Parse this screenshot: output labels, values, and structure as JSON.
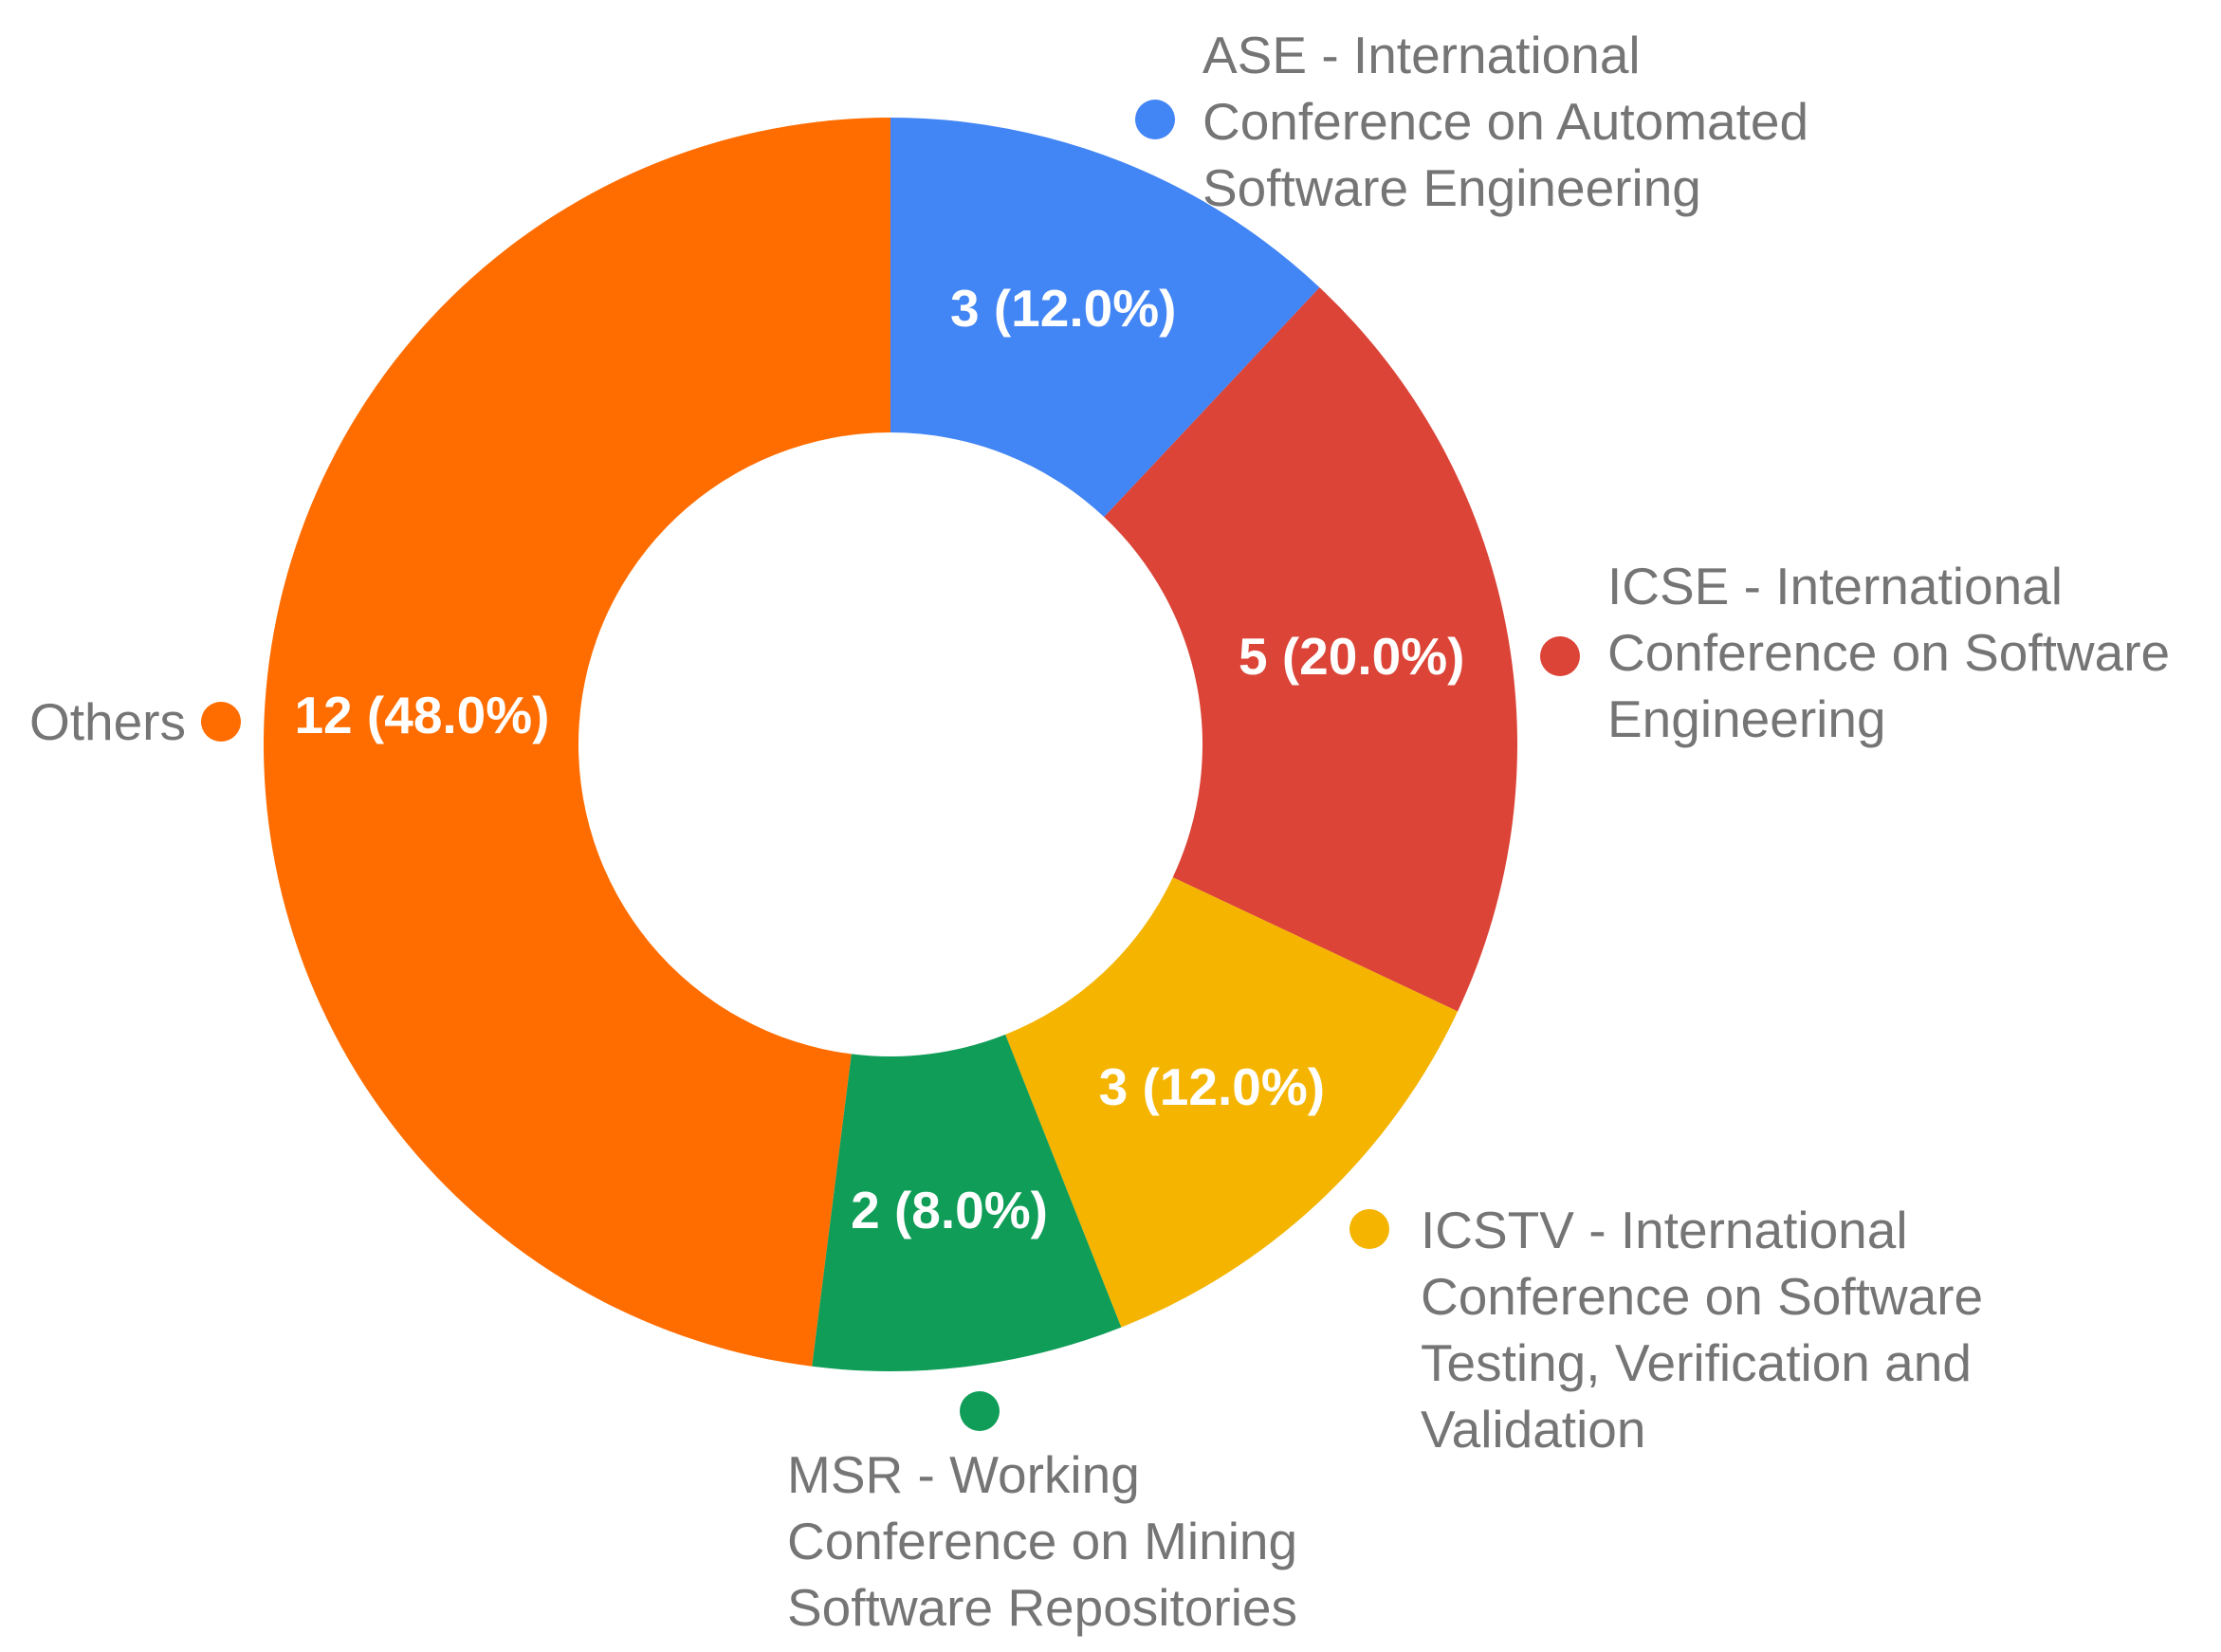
{
  "chart_data": {
    "type": "pie",
    "variant": "donut",
    "title": "",
    "series": [
      {
        "name": "ASE - International Conference on Automated Software Engineering",
        "label_lines": [
          "ASE - International",
          "Conference on Automated",
          "Software Engineering"
        ],
        "value": 3,
        "percent": 12.0,
        "data_label": "3 (12.0%)",
        "color": "#4285F4"
      },
      {
        "name": "ICSE - International Conference on Software Engineering",
        "label_lines": [
          "ICSE - International",
          "Conference on Software",
          "Engineering"
        ],
        "value": 5,
        "percent": 20.0,
        "data_label": "5 (20.0%)",
        "color": "#DB4437"
      },
      {
        "name": "ICSTV - International Conference on Software Testing, Verification and Validation",
        "label_lines": [
          "ICSTV - International",
          "Conference on Software",
          "Testing, Verification and",
          "Validation"
        ],
        "value": 3,
        "percent": 12.0,
        "data_label": "3 (12.0%)",
        "color": "#F4B400"
      },
      {
        "name": "MSR - Working Conference on Mining Software Repositories",
        "label_lines": [
          "MSR - Working",
          "Conference on Mining",
          "Software Repositories"
        ],
        "value": 2,
        "percent": 8.0,
        "data_label": "2 (8.0%)",
        "color": "#0F9D58"
      },
      {
        "name": "Others",
        "label_lines": [
          "Others"
        ],
        "value": 12,
        "percent": 48.0,
        "data_label": "12 (48.0%)",
        "color": "#FF6D00"
      }
    ],
    "legend": "labels beside slices"
  }
}
